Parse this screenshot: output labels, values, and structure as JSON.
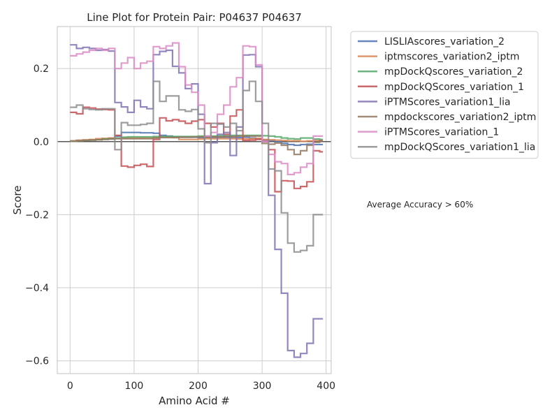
{
  "chart_data": {
    "type": "line",
    "step": true,
    "title": "Line Plot for Protein Pair: P04637 P04637",
    "xlabel": "Amino Acid #",
    "ylabel": "Score",
    "xlim": [
      -20,
      408
    ],
    "ylim": [
      -0.635,
      0.315
    ],
    "xticks": [
      0,
      100,
      200,
      300,
      400
    ],
    "yticks": [
      -0.6,
      -0.4,
      -0.2,
      0.0,
      0.2
    ],
    "ytick_labels": [
      "−0.6",
      "−0.4",
      "−0.2",
      "0.0",
      "0.2"
    ],
    "grid": true,
    "zero_line": true,
    "legend_position": "outside-upper-right",
    "annotation": "Average Accuracy > 60%",
    "series": [
      {
        "name": "LISLIAscores_variation_2",
        "color": "#4c72b0",
        "x": [
          0,
          10,
          20,
          30,
          40,
          50,
          60,
          70,
          80,
          90,
          100,
          110,
          120,
          130,
          140,
          150,
          160,
          170,
          180,
          190,
          200,
          210,
          220,
          230,
          240,
          250,
          260,
          270,
          280,
          290,
          300,
          310,
          320,
          330,
          340,
          350,
          360,
          370,
          380,
          390
        ],
        "y": [
          0.002,
          0.003,
          0.004,
          0.005,
          0.006,
          0.007,
          0.009,
          0.015,
          0.025,
          0.025,
          0.025,
          0.024,
          0.024,
          0.023,
          0.017,
          0.015,
          0.013,
          0.012,
          0.012,
          0.012,
          0.011,
          0.011,
          0.011,
          0.012,
          0.012,
          0.012,
          0.011,
          0.012,
          0.01,
          0.008,
          0.005,
          0.003,
          0.0,
          -0.005,
          -0.008,
          -0.01,
          -0.008,
          -0.007,
          -0.008,
          -0.008
        ]
      },
      {
        "name": "iptmscores_variation2_iptm",
        "color": "#dd8452",
        "x": [
          0,
          10,
          20,
          30,
          40,
          50,
          60,
          70,
          80,
          90,
          100,
          110,
          120,
          130,
          140,
          150,
          160,
          170,
          180,
          190,
          200,
          210,
          220,
          230,
          240,
          250,
          260,
          270,
          280,
          290,
          300,
          310,
          320,
          330,
          340,
          350,
          360,
          370,
          380,
          390
        ],
        "y": [
          0.002,
          0.004,
          0.005,
          0.006,
          0.008,
          0.009,
          0.01,
          0.01,
          0.01,
          0.01,
          0.01,
          0.01,
          0.01,
          0.011,
          0.012,
          0.012,
          0.011,
          0.006,
          0.006,
          0.006,
          0.007,
          0.008,
          0.008,
          0.008,
          0.008,
          0.008,
          0.007,
          0.007,
          0.008,
          0.009,
          0.006,
          0.005,
          0.004,
          0.003,
          0.002,
          0.002,
          0.001,
          0.002,
          0.003,
          0.002
        ]
      },
      {
        "name": "mpDockQscores_variation_2",
        "color": "#55a868",
        "x": [
          0,
          10,
          20,
          30,
          40,
          50,
          60,
          70,
          80,
          90,
          100,
          110,
          120,
          130,
          140,
          150,
          160,
          170,
          180,
          190,
          200,
          210,
          220,
          230,
          240,
          250,
          260,
          270,
          280,
          290,
          300,
          310,
          320,
          330,
          340,
          350,
          360,
          370,
          380,
          390
        ],
        "y": [
          0.001,
          0.002,
          0.003,
          0.004,
          0.005,
          0.007,
          0.008,
          0.01,
          0.012,
          0.013,
          0.013,
          0.013,
          0.013,
          0.014,
          0.014,
          0.014,
          0.014,
          0.014,
          0.014,
          0.014,
          0.015,
          0.015,
          0.015,
          0.016,
          0.016,
          0.017,
          0.017,
          0.017,
          0.017,
          0.017,
          0.016,
          0.015,
          0.013,
          0.01,
          0.008,
          0.007,
          0.01,
          0.01,
          0.007,
          0.006
        ]
      },
      {
        "name": "mpDockQScores_variation_1",
        "color": "#c44e52",
        "x": [
          0,
          10,
          20,
          30,
          40,
          50,
          60,
          70,
          80,
          90,
          100,
          110,
          120,
          130,
          140,
          150,
          160,
          170,
          180,
          190,
          200,
          210,
          220,
          230,
          240,
          250,
          260,
          270,
          280,
          290,
          300,
          310,
          320,
          330,
          340,
          350,
          360,
          370,
          380,
          390
        ],
        "y": [
          0.08,
          0.076,
          0.094,
          0.092,
          0.089,
          0.088,
          0.087,
          0.017,
          -0.067,
          -0.07,
          -0.065,
          -0.062,
          -0.068,
          0.006,
          0.065,
          0.057,
          0.06,
          0.056,
          0.05,
          0.056,
          0.06,
          0.05,
          0.04,
          0.05,
          0.02,
          0.07,
          0.087,
          0.003,
          0.004,
          0.006,
          0.001,
          -0.022,
          -0.137,
          -0.107,
          -0.108,
          -0.128,
          -0.123,
          -0.11,
          -0.025,
          -0.028
        ]
      },
      {
        "name": "iPTMScores_variation1_lia",
        "color": "#8172b3",
        "x": [
          0,
          10,
          20,
          30,
          40,
          50,
          60,
          70,
          80,
          90,
          100,
          110,
          120,
          130,
          140,
          150,
          160,
          170,
          180,
          190,
          200,
          210,
          220,
          230,
          240,
          250,
          260,
          270,
          280,
          290,
          300,
          310,
          320,
          330,
          340,
          350,
          360,
          370,
          380,
          390
        ],
        "y": [
          0.265,
          0.255,
          0.258,
          0.255,
          0.25,
          0.252,
          0.248,
          0.107,
          0.095,
          0.08,
          0.113,
          0.095,
          0.09,
          0.238,
          0.247,
          0.25,
          0.206,
          0.188,
          0.145,
          0.158,
          0.075,
          -0.115,
          -0.003,
          0.02,
          0.025,
          -0.038,
          0.04,
          0.237,
          0.238,
          0.205,
          0.0,
          -0.147,
          -0.295,
          -0.415,
          -0.572,
          -0.59,
          -0.58,
          -0.552,
          -0.485,
          -0.485
        ]
      },
      {
        "name": "mpdockscores_variation2_iptm",
        "color": "#937860",
        "x": [
          0,
          10,
          20,
          30,
          40,
          50,
          60,
          70,
          80,
          90,
          100,
          110,
          120,
          130,
          140,
          150,
          160,
          170,
          180,
          190,
          200,
          210,
          220,
          230,
          240,
          250,
          260,
          270,
          280,
          290,
          300,
          310,
          320,
          330,
          340,
          350,
          360,
          370,
          380,
          390
        ],
        "y": [
          0.001,
          0.002,
          0.003,
          0.004,
          0.005,
          0.006,
          0.007,
          0.008,
          0.008,
          0.008,
          0.008,
          0.008,
          0.008,
          0.01,
          0.011,
          0.011,
          0.011,
          0.012,
          0.012,
          0.013,
          0.013,
          0.013,
          0.013,
          0.013,
          0.014,
          0.014,
          0.015,
          0.015,
          0.015,
          0.015,
          -0.005,
          -0.007,
          -0.004,
          -0.01,
          -0.022,
          -0.035,
          -0.025,
          -0.01,
          -0.002,
          0.003
        ]
      },
      {
        "name": "iPTMScores_variation_1",
        "color": "#da8bc3",
        "x": [
          0,
          10,
          20,
          30,
          40,
          50,
          60,
          70,
          80,
          90,
          100,
          110,
          120,
          130,
          140,
          150,
          160,
          170,
          180,
          190,
          200,
          210,
          220,
          230,
          240,
          250,
          260,
          270,
          280,
          290,
          300,
          310,
          320,
          330,
          340,
          350,
          360,
          370,
          380,
          390
        ],
        "y": [
          0.235,
          0.24,
          0.245,
          0.25,
          0.255,
          0.25,
          0.255,
          0.2,
          0.215,
          0.23,
          0.2,
          0.215,
          0.22,
          0.26,
          0.255,
          0.262,
          0.27,
          0.205,
          0.155,
          0.135,
          0.1,
          0.015,
          0.025,
          0.075,
          0.1,
          0.15,
          0.175,
          0.262,
          0.26,
          0.21,
          0.0,
          -0.035,
          -0.055,
          -0.06,
          -0.09,
          -0.085,
          -0.07,
          -0.06,
          0.015,
          0.015
        ]
      },
      {
        "name": "mpDockQScores_variation1_lia",
        "color": "#8c8c8c",
        "x": [
          0,
          10,
          20,
          30,
          40,
          50,
          60,
          70,
          80,
          90,
          100,
          110,
          120,
          130,
          140,
          150,
          160,
          170,
          180,
          190,
          200,
          210,
          220,
          230,
          240,
          250,
          260,
          270,
          280,
          290,
          300,
          310,
          320,
          330,
          340,
          350,
          360,
          370,
          380,
          390
        ],
        "y": [
          0.094,
          0.1,
          0.09,
          0.088,
          0.087,
          0.09,
          0.09,
          -0.022,
          0.052,
          0.045,
          0.045,
          0.047,
          0.05,
          0.165,
          0.11,
          0.125,
          0.125,
          0.087,
          0.083,
          0.088,
          0.035,
          -0.003,
          0.05,
          0.048,
          0.04,
          0.05,
          0.03,
          0.14,
          0.165,
          0.11,
          0.05,
          -0.075,
          -0.08,
          -0.195,
          -0.278,
          -0.302,
          -0.298,
          -0.285,
          -0.2,
          -0.2
        ]
      }
    ]
  }
}
